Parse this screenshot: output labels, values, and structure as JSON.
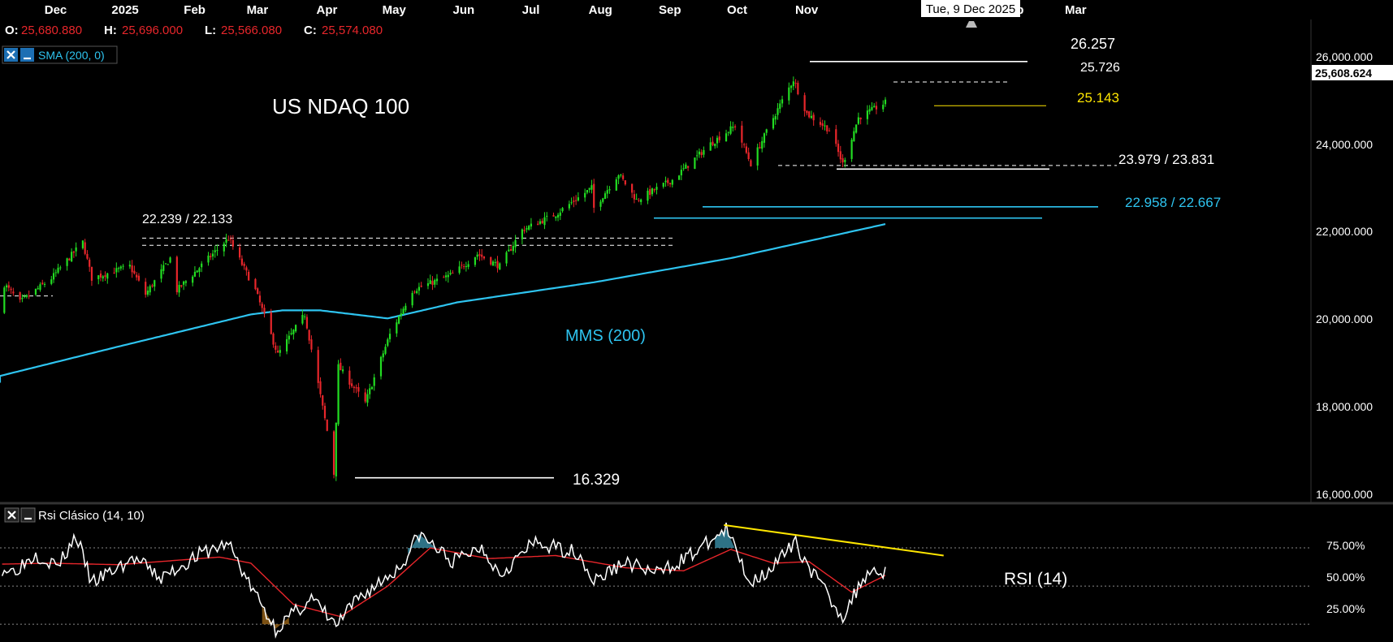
{
  "instrument": "US NDAQ 100",
  "ohlc": {
    "o_label": "O:",
    "o_value": "25,680.880",
    "h_label": "H:",
    "h_value": "25,696.000",
    "l_label": "L:",
    "l_value": "25,566.080",
    "c_label": "C:",
    "c_value": "25,574.080"
  },
  "indicators": {
    "sma_label": "SMA (200, 0)",
    "rsi_label": "Rsi Clásico (14, 10)",
    "close_icon": "close-icon",
    "minimize_icon": "minimize-icon"
  },
  "crosshair_date": "Tue, 9 Dec 2025",
  "last_price": "25,608.624",
  "colors": {
    "background": "#000000",
    "bull": "#22dd22",
    "bear": "#e8262b",
    "sma": "#2ec4f0",
    "rsi": "#ffffff",
    "rsi_signal": "#e8262b",
    "trendline": "#ffe600",
    "support_cyan": "#2ec4f0",
    "yellow_text": "#ffe600"
  },
  "chart_data": {
    "type": "candlestick",
    "x_ticks": [
      "Nov",
      "Dec",
      "2025",
      "Feb",
      "Mar",
      "Apr",
      "May",
      "Jun",
      "Jul",
      "Aug",
      "Sep",
      "Oct",
      "Nov",
      "2026",
      "Feb",
      "Mar"
    ],
    "y_ticks": [
      "26,000.000",
      "24,000.000",
      "22,000.000",
      "20,000.000",
      "18,000.000",
      "16,000.000"
    ],
    "ylim": [
      15900,
      27000
    ],
    "rsi_ticks": [
      "75.00%",
      "50.00%",
      "25.00%"
    ],
    "rsi_ylim": [
      15,
      100
    ],
    "price_path": [
      [
        "2024-10-28",
        20300
      ],
      [
        "2024-11-05",
        20100
      ],
      [
        "2024-11-11",
        21050
      ],
      [
        "2024-11-18",
        20600
      ],
      [
        "2024-12-02",
        21200
      ],
      [
        "2024-12-16",
        22100
      ],
      [
        "2024-12-20",
        21200
      ],
      [
        "2025-01-06",
        21500
      ],
      [
        "2025-01-13",
        20800
      ],
      [
        "2025-01-24",
        21700
      ],
      [
        "2025-01-27",
        20900
      ],
      [
        "2025-02-19",
        22200
      ],
      [
        "2025-03-03",
        20900
      ],
      [
        "2025-03-13",
        19300
      ],
      [
        "2025-03-25",
        20300
      ],
      [
        "2025-04-04",
        17400
      ],
      [
        "2025-04-07",
        16329
      ],
      [
        "2025-04-09",
        19000
      ],
      [
        "2025-04-21",
        18100
      ],
      [
        "2025-05-02",
        19800
      ],
      [
        "2025-05-12",
        20900
      ],
      [
        "2025-05-30",
        21300
      ],
      [
        "2025-06-10",
        21800
      ],
      [
        "2025-06-20",
        21500
      ],
      [
        "2025-06-30",
        22400
      ],
      [
        "2025-07-15",
        22800
      ],
      [
        "2025-07-31",
        23450
      ],
      [
        "2025-08-01",
        22950
      ],
      [
        "2025-08-12",
        23800
      ],
      [
        "2025-08-20",
        23150
      ],
      [
        "2025-09-05",
        23650
      ],
      [
        "2025-09-22",
        24550
      ],
      [
        "2025-10-03",
        25000
      ],
      [
        "2025-10-10",
        24050
      ],
      [
        "2025-10-20",
        25200
      ],
      [
        "2025-10-29",
        26150
      ],
      [
        "2025-11-04",
        25300
      ],
      [
        "2025-11-14",
        24900
      ],
      [
        "2025-11-20",
        24050
      ],
      [
        "2025-11-27",
        25200
      ],
      [
        "2025-12-09",
        25574
      ]
    ],
    "sma_path": [
      [
        "2024-10-28",
        18600
      ],
      [
        "2025-01-01",
        19500
      ],
      [
        "2025-03-01",
        20300
      ],
      [
        "2025-03-15",
        20400
      ],
      [
        "2025-04-01",
        20400
      ],
      [
        "2025-05-01",
        20200
      ],
      [
        "2025-06-01",
        20600
      ],
      [
        "2025-08-01",
        21100
      ],
      [
        "2025-10-01",
        21700
      ],
      [
        "2025-12-09",
        22550
      ]
    ],
    "rsi_path": [
      [
        "2024-10-28",
        66
      ],
      [
        "2024-11-15",
        60
      ],
      [
        "2024-11-25",
        71
      ],
      [
        "2024-12-05",
        63
      ],
      [
        "2024-12-13",
        83
      ],
      [
        "2024-12-20",
        52
      ],
      [
        "2025-01-08",
        68
      ],
      [
        "2025-01-20",
        55
      ],
      [
        "2025-02-05",
        70
      ],
      [
        "2025-02-19",
        78
      ],
      [
        "2025-02-28",
        52
      ],
      [
        "2025-03-12",
        22
      ],
      [
        "2025-03-28",
        42
      ],
      [
        "2025-04-08",
        24
      ],
      [
        "2025-04-18",
        42
      ],
      [
        "2025-05-07",
        63
      ],
      [
        "2025-05-15",
        84
      ],
      [
        "2025-05-30",
        66
      ],
      [
        "2025-06-12",
        76
      ],
      [
        "2025-06-20",
        58
      ],
      [
        "2025-07-05",
        78
      ],
      [
        "2025-07-25",
        72
      ],
      [
        "2025-08-01",
        53
      ],
      [
        "2025-08-15",
        66
      ],
      [
        "2025-08-29",
        58
      ],
      [
        "2025-09-15",
        72
      ],
      [
        "2025-09-29",
        87
      ],
      [
        "2025-10-10",
        52
      ],
      [
        "2025-10-22",
        66
      ],
      [
        "2025-10-30",
        78
      ],
      [
        "2025-11-06",
        60
      ],
      [
        "2025-11-20",
        30
      ],
      [
        "2025-12-01",
        60
      ],
      [
        "2025-12-09",
        60
      ]
    ],
    "rsi_signal_path": [
      [
        "2024-10-28",
        64
      ],
      [
        "2024-12-01",
        65
      ],
      [
        "2025-01-01",
        64
      ],
      [
        "2025-02-15",
        69
      ],
      [
        "2025-03-01",
        65
      ],
      [
        "2025-03-20",
        38
      ],
      [
        "2025-04-10",
        30
      ],
      [
        "2025-05-01",
        50
      ],
      [
        "2025-05-20",
        75
      ],
      [
        "2025-06-15",
        68
      ],
      [
        "2025-07-15",
        70
      ],
      [
        "2025-08-15",
        62
      ],
      [
        "2025-09-10",
        60
      ],
      [
        "2025-10-01",
        74
      ],
      [
        "2025-10-20",
        65
      ],
      [
        "2025-11-05",
        66
      ],
      [
        "2025-11-24",
        46
      ],
      [
        "2025-12-09",
        57
      ]
    ],
    "annotations": {
      "high_label": "26.257",
      "mid_label": "25.726",
      "yellow_label": "25.143",
      "support1_label": "23.979 / 23.831",
      "support2_label": "22.958 / 22.667",
      "prev_high_label": "22.239 / 22.133",
      "low_label": "16.329",
      "sma_label": "MMS (200)",
      "rsi_label": "RSI (14)"
    }
  }
}
